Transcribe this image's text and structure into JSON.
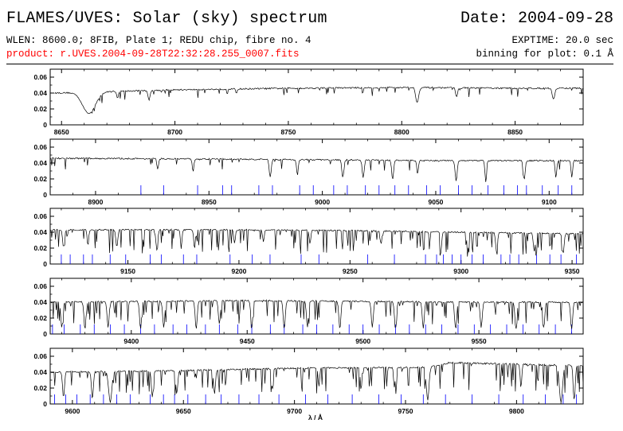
{
  "header": {
    "title": "FLAMES/UVES: Solar (sky) spectrum",
    "date": "Date: 2004-09-28",
    "wlen": "WLEN: 8600.0; 8FIB, Plate 1; REDU chip, fibre no. 4",
    "exptime": "EXPTIME: 20.0 sec",
    "product": "product: r.UVES.2004-09-28T22:32:28.255_0007.fits",
    "binning": "binning for plot: 0.1 Å",
    "product_color": "#ff0000"
  },
  "chart_data": {
    "type": "line",
    "xlabel": "λ / Å",
    "series_color": "#000000",
    "line_marker_color": "#0000ff",
    "panels": [
      {
        "xlim": [
          8645,
          8880
        ],
        "ylim": [
          0,
          0.07
        ],
        "xticks": [
          8650,
          8700,
          8750,
          8800,
          8850
        ],
        "yticks": [
          0,
          0.02,
          0.04,
          0.06
        ],
        "continuum": [
          [
            8647,
            0.04
          ],
          [
            8700,
            0.044
          ],
          [
            8750,
            0.046
          ],
          [
            8800,
            0.047
          ],
          [
            8850,
            0.046
          ],
          [
            8880,
            0.046
          ]
        ],
        "lines": [
          [
            8662.1,
            0.65,
            4.0
          ],
          [
            8688.6,
            0.28,
            0.6
          ],
          [
            8674.7,
            0.2,
            0.5
          ],
          [
            8806.8,
            0.4,
            0.9
          ],
          [
            8824.2,
            0.25,
            0.6
          ],
          [
            8866.9,
            0.3,
            0.8
          ],
          [
            8727.1,
            0.12,
            0.4
          ],
          [
            8790.0,
            0.1,
            0.3
          ]
        ],
        "line_markers": []
      },
      {
        "xlim": [
          8880,
          9115
        ],
        "ylim": [
          0,
          0.07
        ],
        "xticks": [
          8900,
          8950,
          9000,
          9050,
          9100
        ],
        "yticks": [
          0,
          0.02,
          0.04,
          0.06
        ],
        "continuum": [
          [
            8880,
            0.046
          ],
          [
            8950,
            0.045
          ],
          [
            9000,
            0.044
          ],
          [
            9050,
            0.043
          ],
          [
            9115,
            0.043
          ]
        ],
        "lines": [
          [
            8927.4,
            0.3,
            0.5
          ],
          [
            8943.0,
            0.35,
            0.5
          ],
          [
            8977.0,
            0.5,
            0.6
          ],
          [
            8989.0,
            0.45,
            0.5
          ],
          [
            9009.0,
            0.5,
            0.6
          ],
          [
            9018.0,
            0.5,
            0.6
          ],
          [
            9031.0,
            0.55,
            0.6
          ],
          [
            9042.0,
            0.4,
            0.5
          ],
          [
            9059.0,
            0.6,
            0.6
          ],
          [
            9072.0,
            0.5,
            0.5
          ],
          [
            9089.0,
            0.55,
            0.6
          ],
          [
            9103.0,
            0.5,
            0.5
          ],
          [
            9110.0,
            0.5,
            0.5
          ]
        ],
        "line_markers": [
          8920,
          8930,
          8945,
          8956,
          8960,
          8972,
          8978,
          8990,
          8996,
          9005,
          9011,
          9019,
          9025,
          9032,
          9038,
          9046,
          9052,
          9060,
          9066,
          9073,
          9080,
          9086,
          9090,
          9097,
          9104,
          9110
        ]
      },
      {
        "xlim": [
          9115,
          9355
        ],
        "ylim": [
          0,
          0.07
        ],
        "xticks": [
          9150,
          9200,
          9250,
          9300,
          9350
        ],
        "yticks": [
          0,
          0.02,
          0.04,
          0.06
        ],
        "continuum": [
          [
            9115,
            0.043
          ],
          [
            9200,
            0.043
          ],
          [
            9250,
            0.042
          ],
          [
            9300,
            0.04
          ],
          [
            9355,
            0.038
          ]
        ],
        "lines": [
          [
            9121.0,
            0.5,
            0.6
          ],
          [
            9132.0,
            0.45,
            0.5
          ],
          [
            9145.0,
            0.5,
            0.6
          ],
          [
            9163.0,
            0.55,
            0.6
          ],
          [
            9174.0,
            0.5,
            0.5
          ],
          [
            9180.0,
            0.55,
            0.5
          ],
          [
            9198.0,
            0.4,
            0.5
          ],
          [
            9211.0,
            0.35,
            0.5
          ],
          [
            9232.0,
            0.4,
            0.5
          ],
          [
            9264.0,
            0.4,
            0.5
          ],
          [
            9291.0,
            0.55,
            0.5
          ],
          [
            9303.0,
            0.6,
            0.5
          ],
          [
            9316.0,
            0.6,
            0.6
          ],
          [
            9333.0,
            0.6,
            0.6
          ],
          [
            9346.0,
            0.65,
            0.6
          ]
        ],
        "line_markers": [
          9120,
          9124,
          9130,
          9134,
          9142,
          9149,
          9160,
          9165,
          9175,
          9181,
          9196,
          9206,
          9214,
          9228,
          9236,
          9258,
          9270,
          9284,
          9289,
          9292,
          9296,
          9300,
          9305,
          9310,
          9318,
          9322,
          9326,
          9334,
          9340,
          9345,
          9352
        ]
      },
      {
        "xlim": [
          9365,
          9595
        ],
        "ylim": [
          0,
          0.07
        ],
        "xticks": [
          9400,
          9450,
          9500,
          9550
        ],
        "yticks": [
          0,
          0.02,
          0.04,
          0.06
        ],
        "continuum": [
          [
            9365,
            0.04
          ],
          [
            9450,
            0.042
          ],
          [
            9500,
            0.041
          ],
          [
            9550,
            0.04
          ],
          [
            9595,
            0.04
          ]
        ],
        "lines": [
          [
            9370.0,
            0.8,
            0.6
          ],
          [
            9380.0,
            0.85,
            0.6
          ],
          [
            9390.0,
            0.8,
            0.6
          ],
          [
            9404.0,
            0.85,
            0.6
          ],
          [
            9414.0,
            0.8,
            0.6
          ],
          [
            9428.0,
            0.85,
            0.6
          ],
          [
            9438.0,
            0.7,
            0.6
          ],
          [
            9452.0,
            0.8,
            0.6
          ],
          [
            9466.0,
            0.85,
            0.6
          ],
          [
            9476.0,
            0.8,
            0.6
          ],
          [
            9490.0,
            0.85,
            0.6
          ],
          [
            9504.0,
            0.8,
            0.6
          ],
          [
            9514.0,
            0.85,
            0.6
          ],
          [
            9526.0,
            0.8,
            0.6
          ],
          [
            9540.0,
            0.85,
            0.6
          ],
          [
            9551.0,
            0.8,
            0.6
          ],
          [
            9566.0,
            0.85,
            0.6
          ],
          [
            9578.0,
            0.8,
            0.6
          ],
          [
            9590.0,
            0.85,
            0.6
          ]
        ],
        "line_markers": [
          9366,
          9371,
          9378,
          9384,
          9391,
          9397,
          9404,
          9410,
          9418,
          9424,
          9432,
          9438,
          9446,
          9452,
          9460,
          9466,
          9474,
          9480,
          9487,
          9494,
          9500,
          9507,
          9514,
          9520,
          9527,
          9534,
          9541,
          9548,
          9555,
          9562,
          9569,
          9576,
          9583,
          9590
        ]
      },
      {
        "xlim": [
          9590,
          9830
        ],
        "ylim": [
          0,
          0.07
        ],
        "xticks": [
          9600,
          9650,
          9700,
          9750,
          9800
        ],
        "yticks": [
          0,
          0.02,
          0.04,
          0.06
        ],
        "continuum": [
          [
            9590,
            0.04
          ],
          [
            9650,
            0.042
          ],
          [
            9700,
            0.045
          ],
          [
            9760,
            0.046
          ],
          [
            9770,
            0.052
          ],
          [
            9800,
            0.05
          ],
          [
            9830,
            0.048
          ]
        ],
        "lines": [
          [
            9596.0,
            0.8,
            0.6
          ],
          [
            9609.0,
            0.85,
            0.6
          ],
          [
            9617.0,
            0.9,
            1.0
          ],
          [
            9636.0,
            0.8,
            0.6
          ],
          [
            9647.0,
            0.7,
            0.6
          ],
          [
            9664.0,
            0.7,
            0.6
          ],
          [
            9690.0,
            0.6,
            0.5
          ],
          [
            9711.0,
            0.5,
            0.5
          ],
          [
            9730.0,
            0.6,
            0.5
          ],
          [
            9745.0,
            0.55,
            0.5
          ],
          [
            9760.0,
            0.9,
            0.8
          ],
          [
            9802.0,
            0.6,
            0.5
          ],
          [
            9820.0,
            0.95,
            1.0
          ],
          [
            9826.0,
            0.9,
            0.6
          ]
        ],
        "line_markers": [
          9592,
          9597,
          9602,
          9608,
          9614,
          9620,
          9626,
          9635,
          9641,
          9646,
          9652,
          9660,
          9667,
          9675,
          9684,
          9693,
          9705,
          9715,
          9726,
          9738,
          9748,
          9758,
          9768,
          9780,
          9792,
          9803,
          9813,
          9821,
          9827
        ]
      }
    ]
  }
}
